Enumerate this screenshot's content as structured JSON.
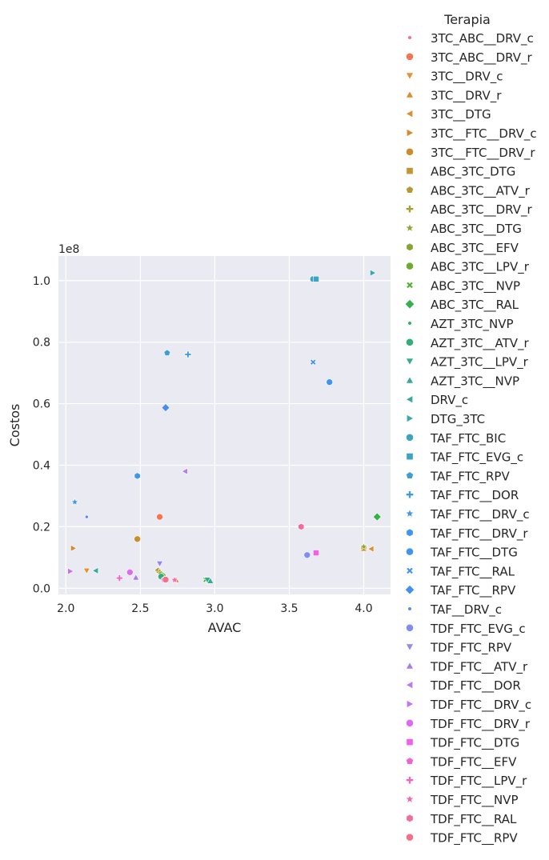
{
  "chart_data": {
    "type": "scatter",
    "title": "",
    "xlabel": "AVAC",
    "ylabel": "Costos",
    "y_offset_label": "1e8",
    "x_ticks": [
      2.0,
      2.5,
      3.0,
      3.5,
      4.0
    ],
    "x_tick_labels": [
      "2.0",
      "2.5",
      "3.0",
      "3.5",
      "4.0"
    ],
    "y_ticks": [
      0.0,
      0.2,
      0.4,
      0.6,
      0.8,
      1.0
    ],
    "y_tick_labels": [
      "0.0",
      "0.2",
      "0.4",
      "0.6",
      "0.8",
      "1.0"
    ],
    "xlim": [
      1.95,
      4.18
    ],
    "ylim": [
      -0.02,
      1.08
    ],
    "y_scale": 100000000,
    "grid": true,
    "legend_title": "Terapia",
    "legend_position": "right",
    "series": [
      {
        "name": "3TC_ABC__DRV_c",
        "color": "#f77189",
        "marker": "point",
        "points": [
          [
            2.06,
            0.28
          ]
        ]
      },
      {
        "name": "3TC_ABC__DRV_r",
        "color": "#f57451",
        "marker": "circle",
        "points": [
          [
            2.63,
            0.232
          ]
        ]
      },
      {
        "name": "3TC__DRV_c",
        "color": "#e98f32",
        "marker": "triangle-down",
        "points": [
          [
            2.14,
            0.057
          ]
        ]
      },
      {
        "name": "3TC__DRV_r",
        "color": "#e18b2f",
        "marker": "triangle-up",
        "points": [
          [
            2.74,
            0.027
          ]
        ]
      },
      {
        "name": "3TC__DTG",
        "color": "#dd8e2d",
        "marker": "triangle-left",
        "points": [
          [
            4.05,
            0.128
          ]
        ]
      },
      {
        "name": "3TC__FTC__DRV_c",
        "color": "#d6892a",
        "marker": "triangle-right",
        "points": [
          [
            2.05,
            0.13
          ]
        ]
      },
      {
        "name": "3TC__FTC__DRV_r",
        "color": "#cb8d29",
        "marker": "circle",
        "points": [
          [
            2.48,
            0.16
          ]
        ]
      },
      {
        "name": "ABC_3TC_DTG",
        "color": "#c49431",
        "marker": "square",
        "points": [
          [
            4.0,
            0.13
          ]
        ]
      },
      {
        "name": "ABC_3TC__ATV_r",
        "color": "#b59a32",
        "marker": "pentagon",
        "points": [
          [
            2.62,
            0.057
          ]
        ]
      },
      {
        "name": "ABC_3TC__DRV_r",
        "color": "#a89f31",
        "marker": "plus",
        "points": [
          [
            2.63,
            0.052
          ]
        ]
      },
      {
        "name": "ABC_3TC__DTG",
        "color": "#98a331",
        "marker": "star",
        "points": [
          [
            4.0,
            0.135
          ]
        ]
      },
      {
        "name": "ABC_3TC__EFV",
        "color": "#85a731",
        "marker": "hexagon",
        "points": [
          [
            2.64,
            0.045
          ]
        ]
      },
      {
        "name": "ABC_3TC__LPV_r",
        "color": "#6fab32",
        "marker": "octagon",
        "points": [
          [
            2.65,
            0.04
          ]
        ]
      },
      {
        "name": "ABC_3TC__NVP",
        "color": "#50b033",
        "marker": "x",
        "points": [
          [
            2.94,
            0.028
          ]
        ]
      },
      {
        "name": "ABC_3TC__RAL",
        "color": "#34b04d",
        "marker": "diamond",
        "points": [
          [
            4.09,
            0.232
          ]
        ]
      },
      {
        "name": "AZT_3TC_NVP",
        "color": "#34ae68",
        "marker": "point",
        "points": [
          [
            2.66,
            0.035
          ]
        ]
      },
      {
        "name": "AZT_3TC__ATV_r",
        "color": "#35ac7b",
        "marker": "circle",
        "points": [
          [
            2.64,
            0.038
          ]
        ]
      },
      {
        "name": "AZT_3TC__LPV_r",
        "color": "#36ab8a",
        "marker": "triangle-down",
        "points": [
          [
            2.95,
            0.027
          ]
        ]
      },
      {
        "name": "AZT_3TC__NVP",
        "color": "#37aa97",
        "marker": "triangle-up",
        "points": [
          [
            2.97,
            0.024
          ]
        ]
      },
      {
        "name": "DRV_c",
        "color": "#38a8a2",
        "marker": "triangle-left",
        "points": [
          [
            2.2,
            0.057
          ]
        ]
      },
      {
        "name": "DTG_3TC",
        "color": "#39a7ae",
        "marker": "triangle-right",
        "points": [
          [
            4.06,
            1.025
          ]
        ]
      },
      {
        "name": "TAF_FTC_BIC",
        "color": "#3aa6b9",
        "marker": "circle",
        "points": [
          [
            3.66,
            1.005
          ]
        ]
      },
      {
        "name": "TAF_FTC_EVG_c",
        "color": "#3ba3c5",
        "marker": "square",
        "points": [
          [
            3.68,
            1.005
          ]
        ]
      },
      {
        "name": "TAF_FTC_RPV",
        "color": "#3ca0d1",
        "marker": "pentagon",
        "points": [
          [
            2.68,
            0.765
          ]
        ]
      },
      {
        "name": "TAF_FTC__DOR",
        "color": "#3e9de0",
        "marker": "plus",
        "points": [
          [
            2.82,
            0.76
          ]
        ]
      },
      {
        "name": "TAF_FTC__DRV_c",
        "color": "#3f99e5",
        "marker": "star",
        "points": [
          [
            2.06,
            0.28
          ]
        ]
      },
      {
        "name": "TAF_FTC__DRV_r",
        "color": "#3f96ea",
        "marker": "hexagon",
        "points": [
          [
            2.48,
            0.365
          ]
        ]
      },
      {
        "name": "TAF_FTC__DTG",
        "color": "#4094ee",
        "marker": "circle",
        "points": [
          [
            3.77,
            0.67
          ]
        ]
      },
      {
        "name": "TAF_FTC__RAL",
        "color": "#4391f1",
        "marker": "x",
        "points": [
          [
            3.66,
            0.735
          ]
        ]
      },
      {
        "name": "TAF_FTC__RPV",
        "color": "#468df4",
        "marker": "diamond",
        "points": [
          [
            2.67,
            0.587
          ]
        ]
      },
      {
        "name": "TAF__DRV_c",
        "color": "#5a8bf5",
        "marker": "point",
        "points": [
          [
            2.14,
            0.232
          ]
        ]
      },
      {
        "name": "TDF_FTC_EVG_c",
        "color": "#7f8ef3",
        "marker": "circle",
        "points": [
          [
            3.62,
            0.108
          ]
        ]
      },
      {
        "name": "TDF_FTC_RPV",
        "color": "#9c83f2",
        "marker": "triangle-down",
        "points": [
          [
            2.63,
            0.08
          ]
        ]
      },
      {
        "name": "TDF_FTC__ATV_r",
        "color": "#a97df1",
        "marker": "triangle-up",
        "points": [
          [
            2.47,
            0.035
          ]
        ]
      },
      {
        "name": "TDF_FTC__DOR",
        "color": "#b77bf2",
        "marker": "triangle-left",
        "points": [
          [
            2.8,
            0.38
          ]
        ]
      },
      {
        "name": "TDF_FTC__DRV_c",
        "color": "#c872f1",
        "marker": "triangle-right",
        "points": [
          [
            2.03,
            0.055
          ]
        ]
      },
      {
        "name": "TDF_FTC__DRV_r",
        "color": "#dc6bf1",
        "marker": "circle",
        "points": [
          [
            2.43,
            0.052
          ]
        ]
      },
      {
        "name": "TDF_FTC__DTG",
        "color": "#f161e5",
        "marker": "square",
        "points": [
          [
            3.68,
            0.115
          ]
        ]
      },
      {
        "name": "TDF_FTC__EFV",
        "color": "#f35fd6",
        "marker": "pentagon",
        "points": [
          [
            2.66,
            0.028
          ]
        ]
      },
      {
        "name": "TDF_FTC__LPV_r",
        "color": "#f463c5",
        "marker": "plus",
        "points": [
          [
            2.36,
            0.033
          ]
        ]
      },
      {
        "name": "TDF_FTC__NVP",
        "color": "#f467b3",
        "marker": "star",
        "points": [
          [
            2.73,
            0.027
          ]
        ]
      },
      {
        "name": "TDF_FTC__RAL",
        "color": "#f56b9e",
        "marker": "hexagon",
        "points": [
          [
            3.58,
            0.2
          ]
        ]
      },
      {
        "name": "TDF_FTC__RPV",
        "color": "#f56e8a",
        "marker": "octagon",
        "points": [
          [
            2.67,
            0.028
          ]
        ]
      }
    ]
  }
}
